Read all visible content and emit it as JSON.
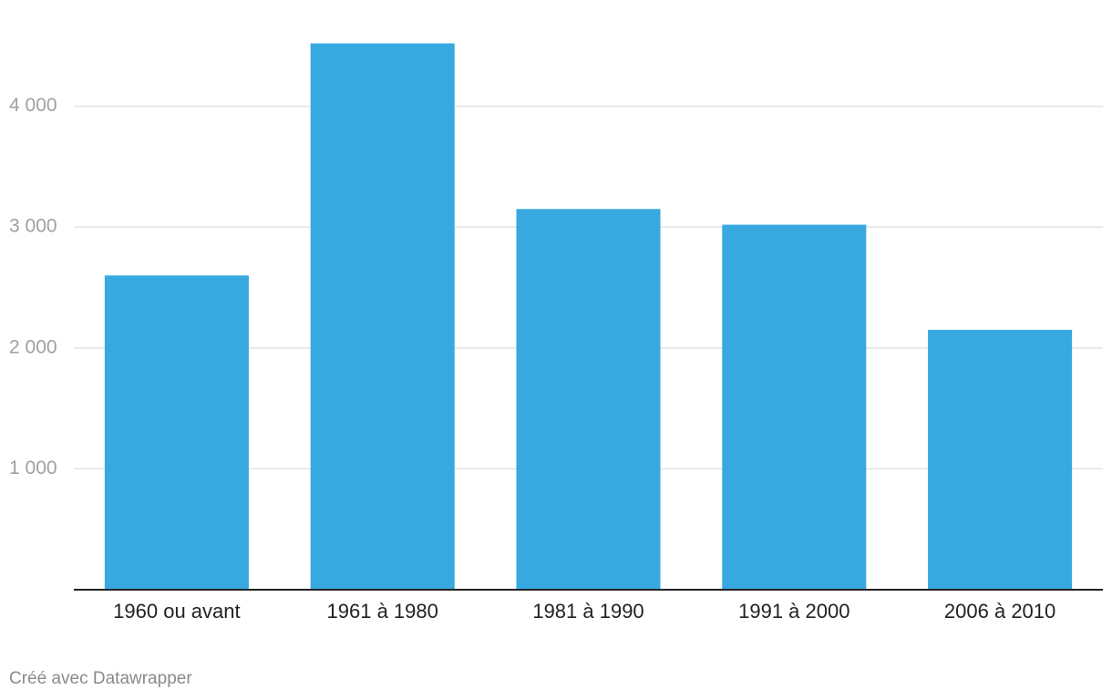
{
  "chart_data": {
    "type": "bar",
    "categories": [
      "1960 ou avant",
      "1961 à 1980",
      "1981 à 1990",
      "1991 à 2000",
      "2006 à 2010"
    ],
    "values": [
      2600,
      4520,
      3150,
      3020,
      2150
    ],
    "color": "#38a9e0",
    "ylim": [
      0,
      4600
    ],
    "yticks": [
      {
        "value": 1000,
        "label": "1 000"
      },
      {
        "value": 2000,
        "label": "2 000"
      },
      {
        "value": 3000,
        "label": "3 000"
      },
      {
        "value": 4000,
        "label": "4 000"
      }
    ],
    "grid": true,
    "footer": "Créé avec Datawrapper"
  }
}
